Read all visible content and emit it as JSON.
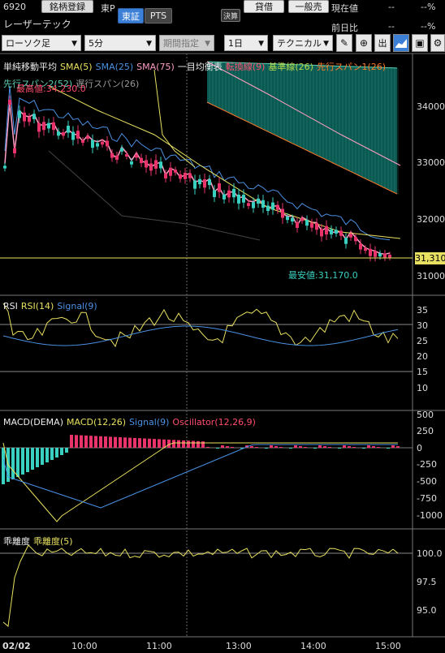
{
  "header": {
    "code": "6920",
    "register_label": "銘柄登録",
    "exchange_short": "東P",
    "tab_tse": "東証",
    "tab_pts": "PTS",
    "settle_label": "決算",
    "buy_label": "貸借",
    "account_label": "一般売",
    "current_price_label": "現在値",
    "current_price_value": "--",
    "current_price_pct": "--%",
    "name": "レーザーテック",
    "prev_ratio_label": "前日比",
    "prev_ratio_value": "--",
    "prev_ratio_pct": "--%"
  },
  "toolbar": {
    "chart_type": "ローソク足",
    "interval": "5分",
    "period_label": "期間指定",
    "range": "1日",
    "technical_label": "テクニカル",
    "icons": [
      "pencil-icon",
      "zoom-icon",
      "exit-icon",
      "area-chart-icon",
      "save-icon",
      "settings-icon"
    ]
  },
  "main_panel": {
    "legend": {
      "title": "単純移動平均",
      "sma5": "SMA(5)",
      "sma25": "SMA(25)",
      "sma75": "SMA(75)",
      "ichimoku": "一目均衡表",
      "tenkan": "転換線(9)",
      "kijun": "基準線(26)",
      "span1": "先行スパン1(26)",
      "span2": "先行スパン2(52)",
      "chikou": "遅行スパン(26)"
    },
    "high_label": "最高値:34,230.0",
    "low_label": "最安値:31,170.0",
    "current_tag": "31,310",
    "yaxis": [
      "34000",
      "33000",
      "32000",
      "31000"
    ]
  },
  "rsi_panel": {
    "title": "RSI",
    "rsi": "RSI(14)",
    "signal": "Signal(9)",
    "yaxis": [
      "35",
      "30",
      "25",
      "20",
      "15",
      "10"
    ]
  },
  "macd_panel": {
    "title": "MACD(DEMA)",
    "macd": "MACD(12,26)",
    "signal": "Signal(9)",
    "osc": "Oscillator(12,26,9)",
    "yaxis": [
      "500",
      "250",
      "0",
      "-250",
      "-500",
      "-750",
      "-1000"
    ]
  },
  "dev_panel": {
    "title": "乖離度",
    "series": "乖離度(5)",
    "yaxis": [
      "100.0",
      "97.5",
      "95.0"
    ]
  },
  "xaxis": [
    "02/02",
    "10:00",
    "11:00",
    "13:00",
    "14:00",
    "15:00"
  ],
  "colors": {
    "sma5": "#e8e060",
    "sma25": "#4a90e2",
    "sma75": "#ff9ec4",
    "tenkan": "#ff4d6d",
    "kijun": "#b7d84a",
    "span1": "#ff7a2a",
    "span2": "#5ad1b5",
    "cloud": "#0e6e64",
    "up": "#3ad0c0",
    "down": "#e8336b"
  }
}
